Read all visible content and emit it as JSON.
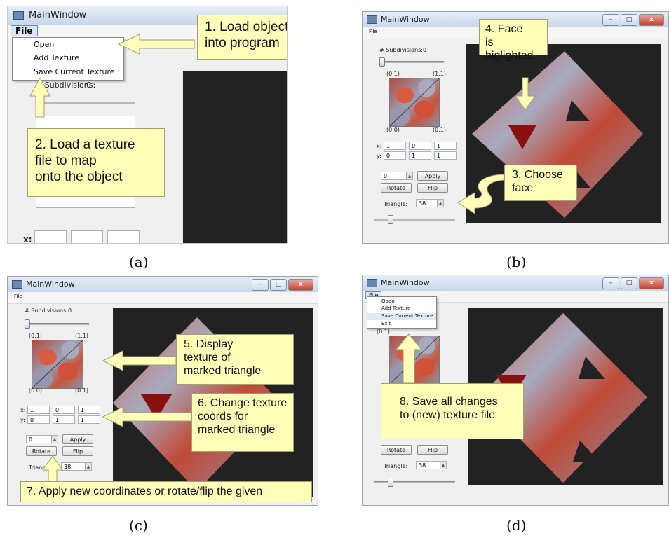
{
  "window_title": "MainWindow",
  "menu": {
    "file_label": "File"
  },
  "file_menu_items": [
    "Open",
    "Add Texture",
    "Save Current Texture",
    "Exit"
  ],
  "controls": {
    "subdivisions_label": "# Subdivisions:",
    "subdivisions_value": "0",
    "subdivisions_slider_fraction": 0.0,
    "corner_tl": "(0.1)",
    "corner_tr": "(1.1)",
    "corner_bl": "(0.0)",
    "corner_br": "(0.1)",
    "x_label": "x:",
    "y_label": "y:",
    "x_values": [
      "1",
      "0",
      "1"
    ],
    "y_values": [
      "0",
      "1",
      "1"
    ],
    "angle_value": "0",
    "apply_label": "Apply",
    "rotate_label": "Rotate",
    "flip_label": "Flip",
    "triangle_label": "Triangle:",
    "triangle_value": "38",
    "triangle_slider_fraction": 0.2
  },
  "callouts": {
    "c1_line1": "1. Load object",
    "c1_line2": "into program",
    "c2_line1": "2. Load a texture",
    "c2_line2": "file to map",
    "c2_line3": "onto the object",
    "c3_line1": "3. Choose",
    "c3_line2": "face",
    "c4_line1": "4. Face",
    "c4_line2": "is higlighted",
    "c5_line1": "5. Display",
    "c5_line2": "texture of",
    "c5_line3": "marked triangle",
    "c6_line1": "6. Change texture",
    "c6_line2": "coords for",
    "c6_line3": "marked triangle",
    "c7_line1": "7. Apply new coordinates or rotate/flip the given",
    "c8_line1": "8. Save all changes",
    "c8_line2": "to (new) texture file"
  },
  "captions": {
    "a": "(a)",
    "b": "(b)",
    "c": "(c)",
    "d": "(d)"
  },
  "colors": {
    "callout_bg": "#ffffb9",
    "viewport_bg": "#222222",
    "arrow_fill": "#ffffb9"
  }
}
